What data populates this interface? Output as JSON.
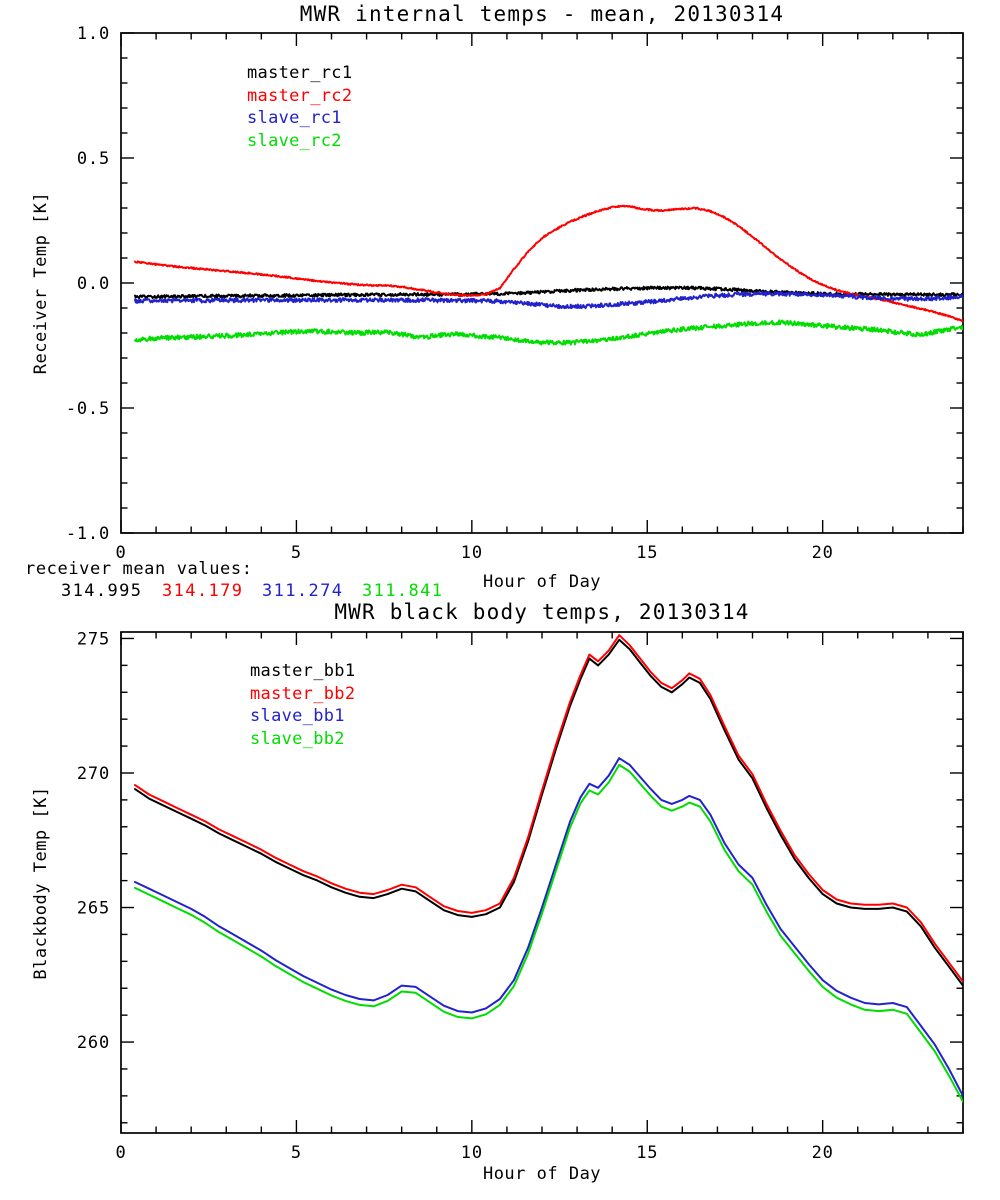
{
  "page": {
    "background": "#ffffff"
  },
  "annotation": {
    "label": "receiver mean values:",
    "values": [
      {
        "text": "314.995",
        "color": "#000000"
      },
      {
        "text": "314.179",
        "color": "#ff0000"
      },
      {
        "text": "311.274",
        "color": "#2222cc"
      },
      {
        "text": "311.841",
        "color": "#00dd00"
      }
    ]
  },
  "chart_data": [
    {
      "type": "line",
      "title": "MWR internal temps - mean, 20130314",
      "xlabel": "Hour of Day",
      "ylabel": "Receiver Temp [K]",
      "xlim": [
        0,
        24
      ],
      "ylim": [
        -1.0,
        1.0
      ],
      "grid": false,
      "legend_position": "top-left-inside",
      "x_ticks": {
        "major": [
          0,
          5,
          10,
          15,
          20
        ],
        "labels": [
          "0",
          "5",
          "10",
          "15",
          "20"
        ],
        "minor_step": 1
      },
      "y_ticks": {
        "major": [
          -1.0,
          -0.5,
          0.0,
          0.5,
          1.0
        ],
        "labels": [
          "-1.0",
          "-0.5",
          "0.0",
          "0.5",
          "1.0"
        ],
        "minor_step": 0.1
      },
      "hours": [
        0.4,
        0.8,
        1.2,
        1.6,
        2,
        2.4,
        2.8,
        3.2,
        3.6,
        4,
        4.4,
        4.8,
        5.2,
        5.6,
        6,
        6.4,
        6.8,
        7.2,
        7.6,
        8,
        8.4,
        8.8,
        9.2,
        9.6,
        10,
        10.4,
        10.8,
        11.2,
        11.6,
        12,
        12.4,
        12.8,
        13.2,
        13.6,
        14,
        14.4,
        14.8,
        15.2,
        15.6,
        16,
        16.4,
        16.8,
        17.2,
        17.6,
        18,
        18.4,
        18.8,
        19.2,
        19.6,
        20,
        20.4,
        20.8,
        21.2,
        21.6,
        22,
        22.4,
        22.8,
        23.2,
        23.6,
        24
      ],
      "series": [
        {
          "name": "master_rc1",
          "color": "#000000",
          "noise": 0.006,
          "values": [
            -0.056,
            -0.055,
            -0.054,
            -0.054,
            -0.053,
            -0.053,
            -0.052,
            -0.052,
            -0.051,
            -0.051,
            -0.05,
            -0.05,
            -0.049,
            -0.049,
            -0.048,
            -0.048,
            -0.047,
            -0.047,
            -0.047,
            -0.046,
            -0.046,
            -0.046,
            -0.046,
            -0.046,
            -0.045,
            -0.044,
            -0.043,
            -0.041,
            -0.039,
            -0.036,
            -0.033,
            -0.03,
            -0.028,
            -0.026,
            -0.024,
            -0.022,
            -0.021,
            -0.02,
            -0.02,
            -0.019,
            -0.02,
            -0.022,
            -0.025,
            -0.028,
            -0.031,
            -0.034,
            -0.037,
            -0.039,
            -0.041,
            -0.043,
            -0.044,
            -0.045,
            -0.045,
            -0.046,
            -0.046,
            -0.046,
            -0.046,
            -0.046,
            -0.046,
            -0.046
          ]
        },
        {
          "name": "master_rc2",
          "color": "#ff0000",
          "noise": 0.003,
          "values": [
            0.085,
            0.078,
            0.071,
            0.065,
            0.06,
            0.055,
            0.05,
            0.045,
            0.04,
            0.034,
            0.028,
            0.022,
            0.015,
            0.008,
            0.002,
            -0.003,
            -0.007,
            -0.01,
            -0.011,
            -0.015,
            -0.024,
            -0.033,
            -0.042,
            -0.048,
            -0.05,
            -0.046,
            -0.02,
            0.055,
            0.125,
            0.18,
            0.215,
            0.245,
            0.268,
            0.288,
            0.303,
            0.309,
            0.298,
            0.29,
            0.291,
            0.297,
            0.299,
            0.287,
            0.263,
            0.228,
            0.185,
            0.14,
            0.095,
            0.055,
            0.02,
            -0.008,
            -0.028,
            -0.043,
            -0.055,
            -0.065,
            -0.077,
            -0.09,
            -0.103,
            -0.117,
            -0.133,
            -0.152
          ]
        },
        {
          "name": "slave_rc1",
          "color": "#2222cc",
          "noise": 0.008,
          "values": [
            -0.072,
            -0.071,
            -0.071,
            -0.07,
            -0.07,
            -0.07,
            -0.07,
            -0.069,
            -0.069,
            -0.069,
            -0.069,
            -0.069,
            -0.069,
            -0.069,
            -0.068,
            -0.068,
            -0.068,
            -0.068,
            -0.068,
            -0.068,
            -0.069,
            -0.069,
            -0.07,
            -0.07,
            -0.07,
            -0.071,
            -0.073,
            -0.077,
            -0.082,
            -0.088,
            -0.092,
            -0.094,
            -0.093,
            -0.09,
            -0.086,
            -0.082,
            -0.078,
            -0.073,
            -0.068,
            -0.062,
            -0.057,
            -0.052,
            -0.049,
            -0.046,
            -0.044,
            -0.043,
            -0.043,
            -0.044,
            -0.046,
            -0.048,
            -0.051,
            -0.054,
            -0.057,
            -0.059,
            -0.061,
            -0.063,
            -0.064,
            -0.062,
            -0.058,
            -0.055
          ]
        },
        {
          "name": "slave_rc2",
          "color": "#00dd00",
          "noise": 0.009,
          "values": [
            -0.228,
            -0.223,
            -0.22,
            -0.218,
            -0.216,
            -0.214,
            -0.212,
            -0.21,
            -0.207,
            -0.204,
            -0.2,
            -0.196,
            -0.193,
            -0.193,
            -0.195,
            -0.198,
            -0.2,
            -0.198,
            -0.196,
            -0.205,
            -0.216,
            -0.214,
            -0.208,
            -0.205,
            -0.209,
            -0.214,
            -0.219,
            -0.226,
            -0.233,
            -0.238,
            -0.24,
            -0.238,
            -0.234,
            -0.229,
            -0.223,
            -0.215,
            -0.206,
            -0.198,
            -0.191,
            -0.185,
            -0.18,
            -0.175,
            -0.171,
            -0.166,
            -0.161,
            -0.158,
            -0.158,
            -0.161,
            -0.166,
            -0.171,
            -0.176,
            -0.18,
            -0.184,
            -0.188,
            -0.194,
            -0.202,
            -0.208,
            -0.196,
            -0.185,
            -0.178
          ]
        }
      ]
    },
    {
      "type": "line",
      "title": "MWR black body temps, 20130314",
      "xlabel": "Hour of Day",
      "ylabel": "Blackbody Temp [K]",
      "xlim": [
        0,
        24
      ],
      "ylim": [
        256.62,
        275.24
      ],
      "grid": false,
      "legend_position": "top-left-inside",
      "x_ticks": {
        "major": [
          0,
          5,
          10,
          15,
          20
        ],
        "labels": [
          "0",
          "5",
          "10",
          "15",
          "20"
        ],
        "minor_step": 1
      },
      "y_ticks": {
        "major": [
          260,
          265,
          270,
          275
        ],
        "labels": [
          "260",
          "265",
          "270",
          "275"
        ],
        "minor_step": 1
      },
      "hours": [
        0.4,
        0.8,
        1.2,
        1.6,
        2,
        2.4,
        2.8,
        3.2,
        3.6,
        4,
        4.4,
        4.8,
        5.2,
        5.6,
        6,
        6.4,
        6.8,
        7.2,
        7.6,
        8,
        8.4,
        8.8,
        9.2,
        9.6,
        10,
        10.4,
        10.8,
        11.2,
        11.6,
        12,
        12.4,
        12.8,
        13.1,
        13.35,
        13.6,
        13.9,
        14.2,
        14.5,
        14.8,
        15.1,
        15.4,
        15.7,
        16,
        16.2,
        16.5,
        16.8,
        17.2,
        17.6,
        18,
        18.4,
        18.8,
        19.2,
        19.6,
        20,
        20.4,
        20.8,
        21.2,
        21.6,
        22,
        22.4,
        22.8,
        23.2,
        23.6,
        24
      ],
      "series": [
        {
          "name": "master_bb1",
          "color": "#000000",
          "noise": 0,
          "values": [
            269.4,
            269.05,
            268.8,
            268.55,
            268.3,
            268.05,
            267.75,
            267.5,
            267.25,
            267.0,
            266.7,
            266.45,
            266.2,
            266.0,
            265.75,
            265.55,
            265.4,
            265.35,
            265.5,
            265.7,
            265.6,
            265.25,
            264.9,
            264.72,
            264.65,
            264.75,
            265.0,
            265.95,
            267.45,
            269.2,
            270.9,
            272.5,
            273.5,
            274.25,
            274.0,
            274.4,
            274.95,
            274.6,
            274.1,
            273.6,
            273.2,
            273.0,
            273.3,
            273.55,
            273.35,
            272.75,
            271.6,
            270.5,
            269.8,
            268.7,
            267.7,
            266.8,
            266.1,
            265.5,
            265.15,
            265.0,
            264.95,
            264.95,
            265.0,
            264.85,
            264.3,
            263.5,
            262.8,
            262.1
          ]
        },
        {
          "name": "master_bb2",
          "color": "#ff0000",
          "noise": 0,
          "values": [
            269.55,
            269.2,
            268.95,
            268.7,
            268.45,
            268.2,
            267.9,
            267.65,
            267.4,
            267.15,
            266.85,
            266.6,
            266.35,
            266.15,
            265.9,
            265.7,
            265.55,
            265.5,
            265.65,
            265.85,
            265.75,
            265.4,
            265.05,
            264.87,
            264.8,
            264.9,
            265.15,
            266.1,
            267.6,
            269.35,
            271.05,
            272.65,
            273.65,
            274.4,
            274.15,
            274.55,
            275.12,
            274.75,
            274.25,
            273.75,
            273.35,
            273.15,
            273.45,
            273.7,
            273.5,
            272.9,
            271.75,
            270.65,
            269.95,
            268.85,
            267.85,
            266.95,
            266.25,
            265.65,
            265.3,
            265.15,
            265.1,
            265.1,
            265.15,
            265.0,
            264.45,
            263.65,
            262.95,
            262.25
          ]
        },
        {
          "name": "slave_bb1",
          "color": "#2222cc",
          "noise": 0,
          "values": [
            265.95,
            265.7,
            265.45,
            265.2,
            264.95,
            264.65,
            264.3,
            264.0,
            263.7,
            263.4,
            263.05,
            262.75,
            262.45,
            262.2,
            261.95,
            261.75,
            261.6,
            261.55,
            261.75,
            262.1,
            262.05,
            261.7,
            261.35,
            261.15,
            261.1,
            261.25,
            261.6,
            262.3,
            263.5,
            265.0,
            266.6,
            268.2,
            269.1,
            269.6,
            269.45,
            269.9,
            270.55,
            270.3,
            269.85,
            269.4,
            269.0,
            268.85,
            269.0,
            269.15,
            269.0,
            268.45,
            267.4,
            266.6,
            266.1,
            265.1,
            264.2,
            263.55,
            262.9,
            262.3,
            261.9,
            261.65,
            261.45,
            261.4,
            261.45,
            261.3,
            260.6,
            259.9,
            259.0,
            258.0
          ]
        },
        {
          "name": "slave_bb2",
          "color": "#00dd00",
          "noise": 0,
          "values": [
            265.73,
            265.48,
            265.23,
            264.98,
            264.73,
            264.43,
            264.08,
            263.78,
            263.48,
            263.18,
            262.83,
            262.53,
            262.23,
            261.98,
            261.73,
            261.53,
            261.38,
            261.33,
            261.53,
            261.88,
            261.83,
            261.48,
            261.13,
            260.93,
            260.88,
            261.03,
            261.38,
            262.08,
            263.28,
            264.78,
            266.38,
            267.98,
            268.88,
            269.35,
            269.2,
            269.65,
            270.3,
            270.05,
            269.6,
            269.15,
            268.75,
            268.6,
            268.75,
            268.9,
            268.75,
            268.2,
            267.15,
            266.35,
            265.85,
            264.85,
            263.95,
            263.3,
            262.65,
            262.05,
            261.65,
            261.4,
            261.2,
            261.15,
            261.2,
            261.05,
            260.35,
            259.65,
            258.75,
            257.78
          ]
        }
      ]
    }
  ]
}
